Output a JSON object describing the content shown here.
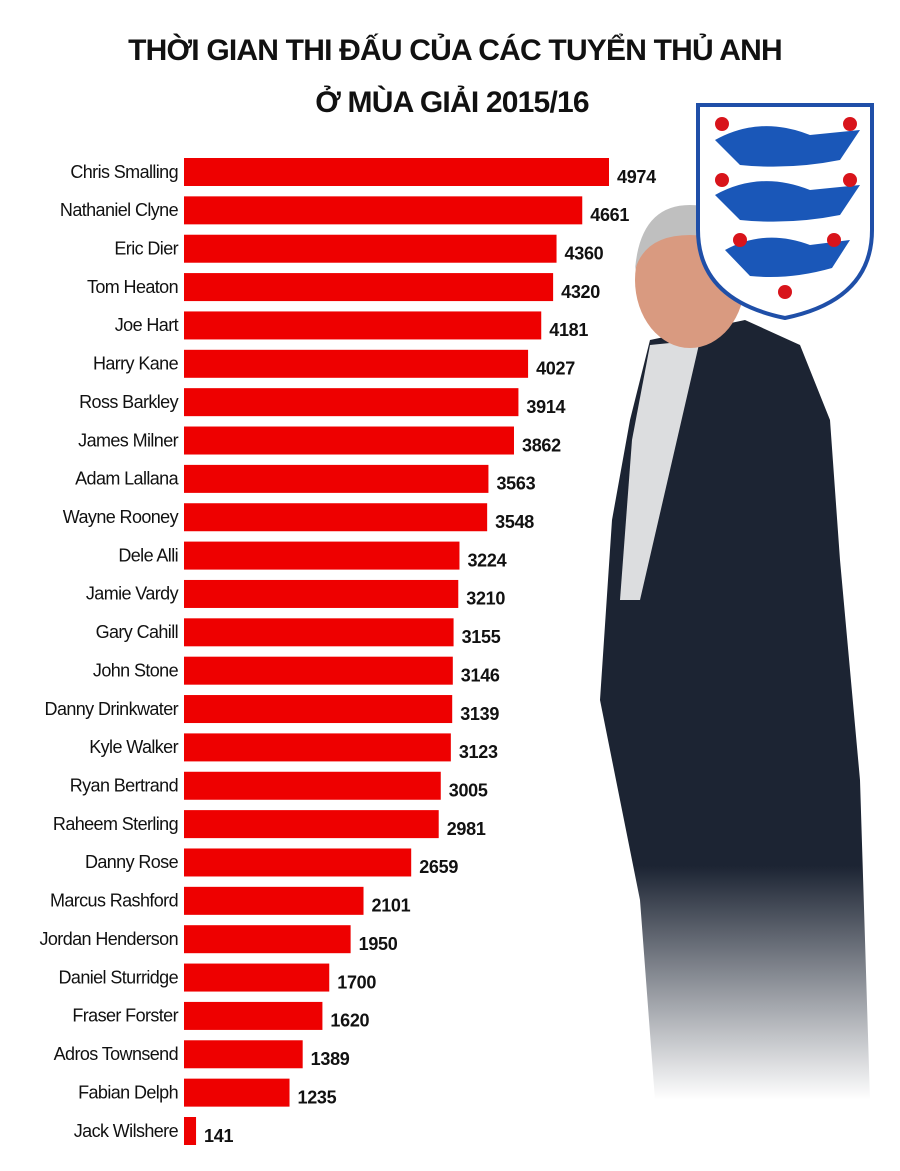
{
  "chart_data": {
    "type": "bar",
    "orientation": "horizontal",
    "title": [
      "THỜI GIAN THI ĐẤU CỦA CÁC TUYỂN THỦ ANH",
      "Ở MÙA GIẢI 2015/16"
    ],
    "color": "#ee0000",
    "categories": [
      "Chris Smalling",
      "Nathaniel Clyne",
      "Eric Dier",
      "Tom Heaton",
      "Joe Hart",
      "Harry Kane",
      "Ross Barkley",
      "James Milner",
      "Adam Lallana",
      "Wayne Rooney",
      "Dele Alli",
      "Jamie Vardy",
      "Gary Cahill",
      "John Stone",
      "Danny Drinkwater",
      "Kyle Walker",
      "Ryan Bertrand",
      "Raheem Sterling",
      "Danny Rose",
      "Marcus Rashford",
      "Jordan Henderson",
      "Daniel Sturridge",
      "Fraser Forster",
      "Adros Townsend",
      "Fabian Delph",
      "Jack Wilshere"
    ],
    "values": [
      4974,
      4661,
      4360,
      4320,
      4181,
      4027,
      3914,
      3862,
      3563,
      3548,
      3224,
      3210,
      3155,
      3146,
      3139,
      3123,
      3005,
      2981,
      2659,
      2101,
      1950,
      1700,
      1620,
      1389,
      1235,
      141
    ]
  }
}
